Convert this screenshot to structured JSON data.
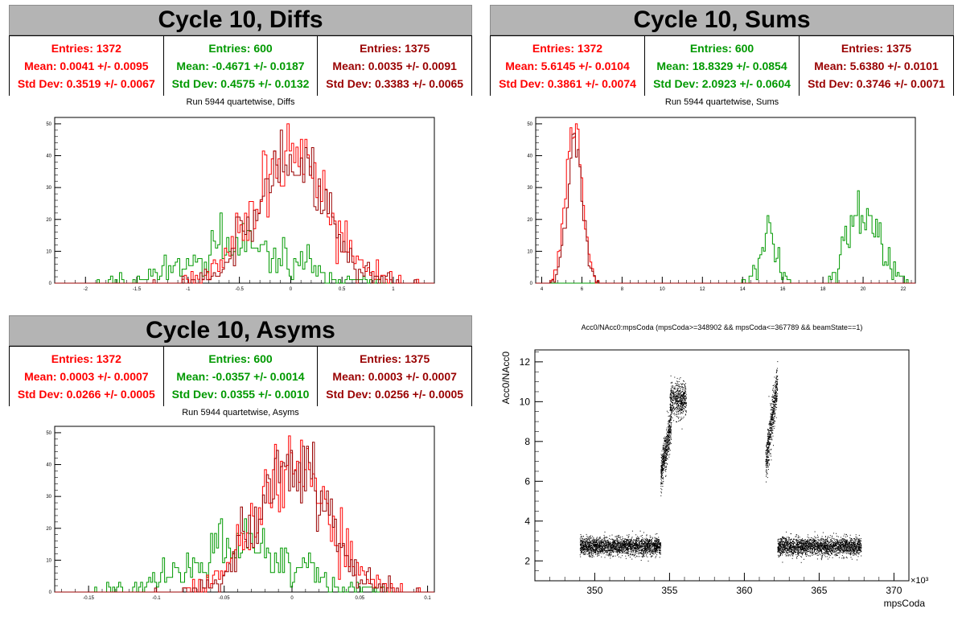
{
  "colors": {
    "red": "#ff0000",
    "green": "#009900",
    "darkred": "#990000",
    "banner": "#b4b4b4"
  },
  "panels": {
    "diffs": {
      "banner": "Cycle 10, Diffs",
      "stats": [
        {
          "entries": "Entries: 1372",
          "mean": "Mean: 0.0041 +/- 0.0095",
          "std": "Std Dev: 0.3519 +/- 0.0067",
          "color": "#ff0000"
        },
        {
          "entries": "Entries: 600",
          "mean": "Mean: -0.4671 +/- 0.0187",
          "std": "Std Dev: 0.4575 +/- 0.0132",
          "color": "#009900"
        },
        {
          "entries": "Entries: 1375",
          "mean": "Mean: 0.0035 +/- 0.0091",
          "std": "Std Dev: 0.3383 +/- 0.0065",
          "color": "#990000"
        }
      ],
      "subtitle": "Run 5944 quartetwise, Diffs"
    },
    "sums": {
      "banner": "Cycle 10, Sums",
      "stats": [
        {
          "entries": "Entries: 1372",
          "mean": "Mean: 5.6145 +/- 0.0104",
          "std": "Std Dev: 0.3861 +/- 0.0074",
          "color": "#ff0000"
        },
        {
          "entries": "Entries: 600",
          "mean": "Mean: 18.8329 +/- 0.0854",
          "std": "Std Dev: 2.0923 +/- 0.0604",
          "color": "#009900"
        },
        {
          "entries": "Entries: 1375",
          "mean": "Mean: 5.6380 +/- 0.0101",
          "std": "Std Dev: 0.3746 +/- 0.0071",
          "color": "#990000"
        }
      ],
      "subtitle": "Run 5944 quartetwise, Sums"
    },
    "asyms": {
      "banner": "Cycle 10, Asyms",
      "stats": [
        {
          "entries": "Entries: 1372",
          "mean": "Mean: 0.0003 +/- 0.0007",
          "std": "Std Dev: 0.0266 +/- 0.0005",
          "color": "#ff0000"
        },
        {
          "entries": "Entries: 600",
          "mean": "Mean: -0.0357 +/- 0.0014",
          "std": "Std Dev: 0.0355 +/- 0.0010",
          "color": "#009900"
        },
        {
          "entries": "Entries: 1375",
          "mean": "Mean: 0.0003 +/- 0.0007",
          "std": "Std Dev: 0.0256 +/- 0.0005",
          "color": "#990000"
        }
      ],
      "subtitle": "Run 5944 quartetwise, Asyms"
    },
    "scatter": {
      "title": "Acc0/NAcc0:mpsCoda (mpsCoda>=348902 && mpsCoda<=367789 && beamState==1)"
    }
  },
  "chart_data": [
    {
      "id": "diffs",
      "type": "histogram",
      "xlim": [
        -2.3,
        1.4
      ],
      "ylim": [
        0,
        52
      ],
      "xticks": [
        -2,
        -1.5,
        -1,
        -0.5,
        0,
        0.5,
        1
      ],
      "xtick_labels": [
        "-2",
        "-1.5",
        "-1",
        "-0.5",
        "0",
        "0.5",
        "1"
      ],
      "yticks": [
        0,
        10,
        20,
        30,
        40,
        50
      ],
      "series": [
        {
          "color": "#009900",
          "mean": -0.4671,
          "std": 0.4575,
          "entries": 600
        },
        {
          "color": "#ff0000",
          "mean": 0.0041,
          "std": 0.3519,
          "entries": 1372
        },
        {
          "color": "#990000",
          "mean": 0.0035,
          "std": 0.3383,
          "entries": 1375
        }
      ]
    },
    {
      "id": "sums",
      "type": "histogram",
      "xlim": [
        3.7,
        22.6
      ],
      "ylim": [
        0,
        52
      ],
      "xticks": [
        4,
        6,
        8,
        10,
        12,
        14,
        16,
        18,
        20,
        22
      ],
      "xtick_labels": [
        "4",
        "6",
        "8",
        "10",
        "12",
        "14",
        "16",
        "18",
        "20",
        "22"
      ],
      "yticks": [
        0,
        10,
        20,
        30,
        40,
        50
      ],
      "series": [
        {
          "color": "#009900",
          "mean": 18.8329,
          "std": 2.0923,
          "entries": 600
        },
        {
          "color": "#ff0000",
          "mean": 5.6145,
          "std": 0.3861,
          "entries": 1372
        },
        {
          "color": "#990000",
          "mean": 5.638,
          "std": 0.3746,
          "entries": 1375
        }
      ]
    },
    {
      "id": "asyms",
      "type": "histogram",
      "xlim": [
        -0.175,
        0.105
      ],
      "ylim": [
        0,
        52
      ],
      "xticks": [
        -0.15,
        -0.1,
        -0.05,
        0,
        0.05,
        0.1
      ],
      "xtick_labels": [
        "-0.15",
        "-0.1",
        "-0.05",
        "0",
        "0.05",
        "0.1"
      ],
      "yticks": [
        0,
        10,
        20,
        30,
        40,
        50
      ],
      "series": [
        {
          "color": "#009900",
          "mean": -0.0357,
          "std": 0.0355,
          "entries": 600
        },
        {
          "color": "#ff0000",
          "mean": 0.0003,
          "std": 0.0266,
          "entries": 1372
        },
        {
          "color": "#990000",
          "mean": 0.0003,
          "std": 0.0256,
          "entries": 1375
        }
      ]
    },
    {
      "id": "scatter",
      "type": "scatter",
      "title": "Acc0/NAcc0:mpsCoda (mpsCoda>=348902 && mpsCoda<=367789 && beamState==1)",
      "xlabel": "mpsCoda",
      "ylabel": "Acc0/NAcc0",
      "x_multiplier": "×10³",
      "xlim": [
        346,
        371
      ],
      "ylim": [
        1,
        12.6
      ],
      "xticks": [
        350,
        355,
        360,
        365,
        370
      ],
      "xtick_labels": [
        "350",
        "355",
        "360",
        "365",
        "370"
      ],
      "yticks": [
        2,
        4,
        6,
        8,
        10,
        12
      ],
      "ytick_labels": [
        "2",
        "4",
        "6",
        "8",
        "10",
        "12"
      ],
      "clusters": [
        {
          "x": [
            349,
            354.4
          ],
          "y_center": 2.75,
          "y_spread": 0.45,
          "note": "baseline band"
        },
        {
          "x": [
            354.4,
            355.1
          ],
          "y_center": 7.7,
          "y_spread": 0.9,
          "note": "rising segment"
        },
        {
          "x": [
            355,
            356.1
          ],
          "y_center": 10.1,
          "y_spread": 0.9,
          "note": "high segment"
        },
        {
          "x": [
            361.4,
            362.2
          ],
          "y_center": 8.8,
          "y_spread": 1.8,
          "note": "second rise"
        },
        {
          "x": [
            362.2,
            367.8
          ],
          "y_center": 2.75,
          "y_spread": 0.45,
          "note": "baseline band 2"
        }
      ]
    }
  ]
}
